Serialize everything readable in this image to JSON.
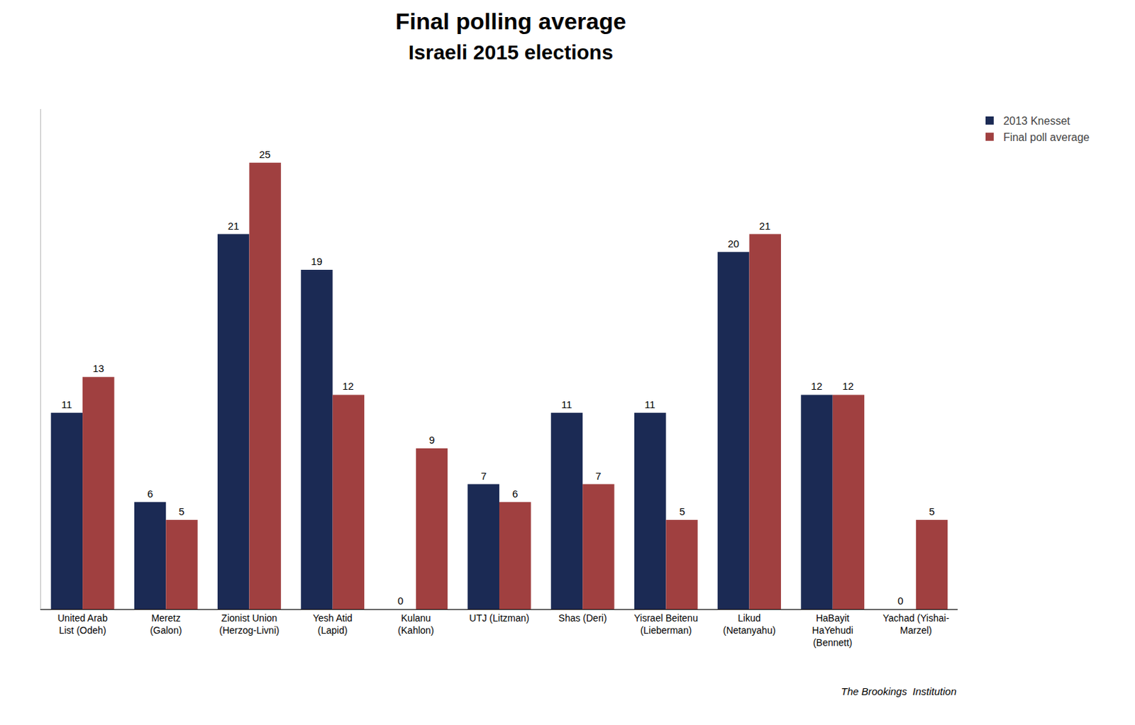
{
  "chart_data": {
    "type": "bar",
    "title": "Final polling average",
    "subtitle": "Israeli 2015 elections",
    "categories": [
      "United Arab\nList (Odeh)",
      "Meretz\n(Galon)",
      "Zionist Union\n(Herzog-Livni)",
      "Yesh Atid\n(Lapid)",
      "Kulanu\n(Kahlon)",
      "UTJ (Litzman)",
      "Shas (Deri)",
      "Yisrael Beitenu\n(Lieberman)",
      "Likud\n(Netanyahu)",
      "HaBayit\nHaYehudi\n(Bennett)",
      "Yachad (Yishai-\nMarzel)"
    ],
    "series": [
      {
        "name": "2013 Knesset",
        "color": "#1B2A54",
        "values": [
          11,
          6,
          21,
          19,
          0,
          7,
          11,
          11,
          20,
          12,
          0
        ]
      },
      {
        "name": "Final poll average",
        "color": "#A04040",
        "values": [
          13,
          5,
          25,
          12,
          9,
          6,
          7,
          5,
          21,
          12,
          5
        ]
      }
    ],
    "ylim": [
      0,
      28
    ],
    "grid": false,
    "legend": "upper right",
    "data_labels": true,
    "tick_labels": "x",
    "annotations": [
      "The Brookings  Institution"
    ]
  }
}
